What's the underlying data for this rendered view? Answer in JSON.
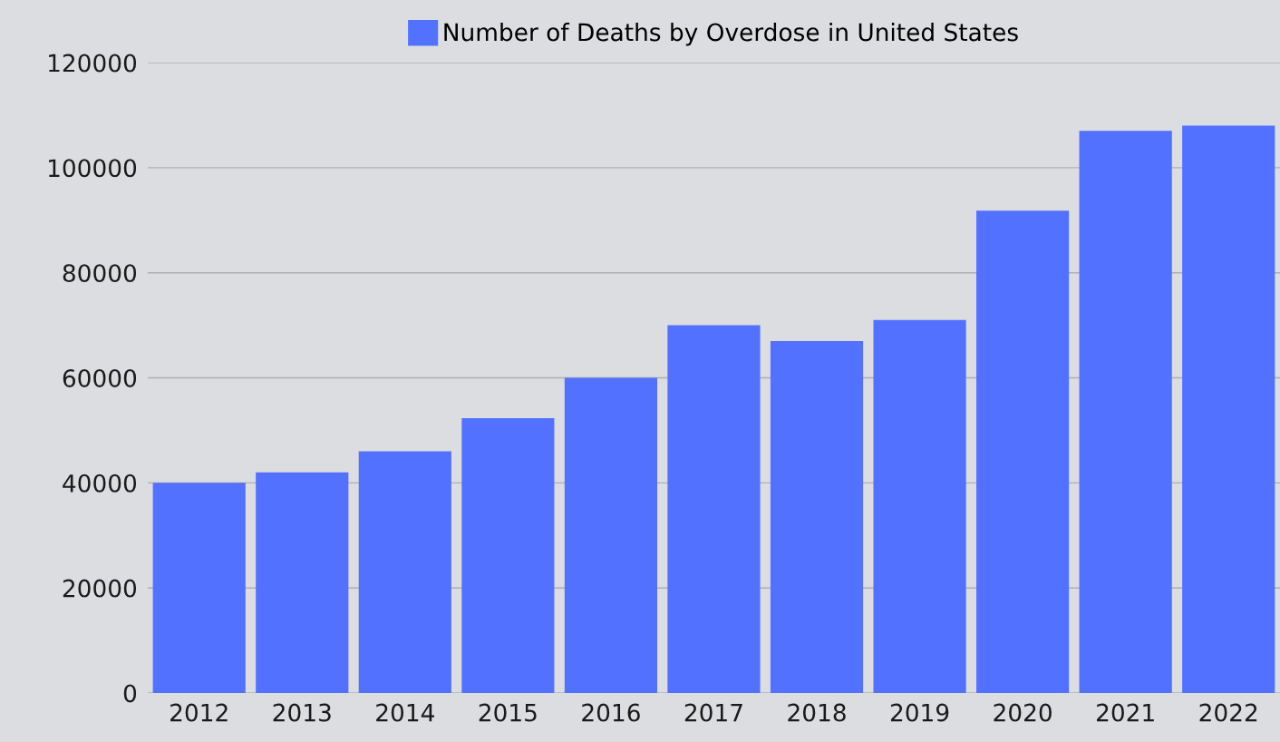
{
  "chart_data": {
    "type": "bar",
    "categories": [
      "2012",
      "2013",
      "2014",
      "2015",
      "2016",
      "2017",
      "2018",
      "2019",
      "2020",
      "2021",
      "2022"
    ],
    "series": [
      {
        "name": "Number of Deaths by Overdose in United States",
        "color": "#5271ff",
        "values": [
          40000,
          42000,
          46000,
          52300,
          60000,
          70000,
          67000,
          71000,
          91800,
          107000,
          108000
        ]
      }
    ],
    "ylim": [
      0,
      120000
    ],
    "yticks": [
      0,
      20000,
      40000,
      60000,
      80000,
      100000,
      120000
    ],
    "grid": "y",
    "legend": "top"
  }
}
